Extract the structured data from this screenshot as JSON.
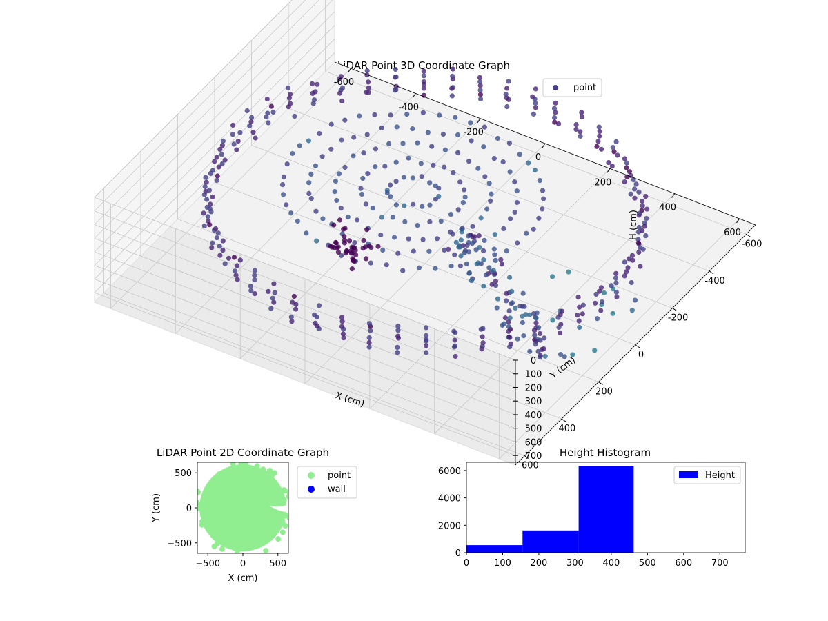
{
  "chart_data": [
    {
      "type": "scatter",
      "title": "LiDAR Point 3D Coordinate Graph",
      "xlabel": "X (cm)",
      "ylabel": "Y (cm)",
      "zlabel": "H (cm)",
      "xlim": [
        -650,
        650
      ],
      "ylim": [
        -650,
        650
      ],
      "zlim": [
        0,
        770
      ],
      "x_ticks": [
        -600,
        -400,
        -200,
        0,
        200,
        400,
        600
      ],
      "y_ticks": [
        -600,
        -400,
        -200,
        0,
        200,
        400,
        600
      ],
      "z_ticks": [
        0,
        100,
        200,
        300,
        400,
        500,
        600,
        700
      ],
      "legend_position": "top-right",
      "grid": true,
      "series": [
        {
          "name": "point",
          "color": "#433e85",
          "colormap": "viridis"
        }
      ],
      "shape": {
        "outer_ring_radius": 600,
        "outer_ring_height": [
          300,
          470
        ],
        "inner_disc_radius": 350,
        "inner_disc_height": 350,
        "corridor_direction": "+X+Y"
      }
    },
    {
      "type": "scatter",
      "title": "LiDAR Point 2D Coordinate Graph",
      "xlabel": "X (cm)",
      "ylabel": "Y (cm)",
      "xlim": [
        -650,
        650
      ],
      "ylim": [
        -650,
        650
      ],
      "x_ticks": [
        -500,
        0,
        500
      ],
      "y_ticks": [
        -500,
        0,
        500
      ],
      "legend_position": "outside-right",
      "series": [
        {
          "name": "point",
          "color": "#90ee90"
        },
        {
          "name": "wall",
          "color": "#0000ff"
        }
      ]
    },
    {
      "type": "bar",
      "title": "Height Histogram",
      "xlim": [
        0,
        770
      ],
      "ylim": [
        0,
        6600
      ],
      "x_ticks": [
        0,
        100,
        200,
        300,
        400,
        500,
        600,
        700
      ],
      "y_ticks": [
        0,
        2000,
        4000,
        6000
      ],
      "legend_position": "top-right",
      "series": [
        {
          "name": "Height",
          "color": "#0000ff",
          "bins": [
            {
              "start": 0,
              "end": 155,
              "count": 550
            },
            {
              "start": 155,
              "end": 310,
              "count": 1620
            },
            {
              "start": 310,
              "end": 462,
              "count": 6300
            },
            {
              "start": 462,
              "end": 616,
              "count": 0
            },
            {
              "start": 616,
              "end": 770,
              "count": 0
            }
          ]
        }
      ]
    }
  ]
}
